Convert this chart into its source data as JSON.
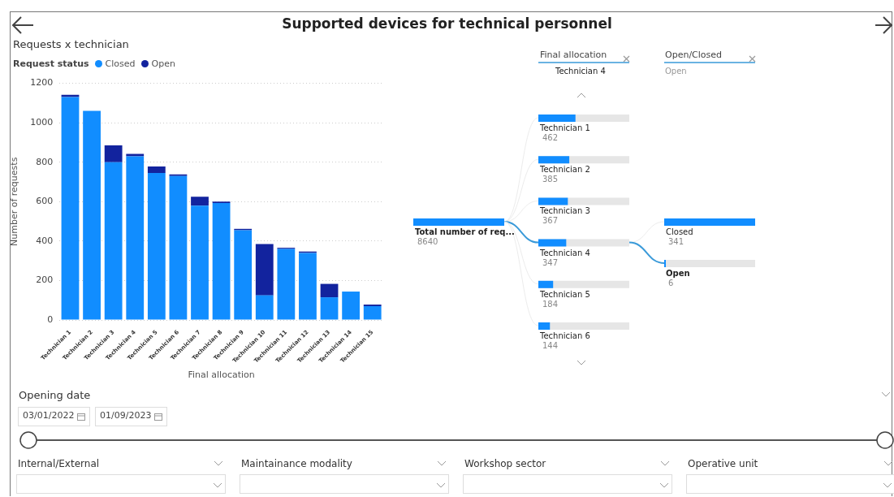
{
  "chart_data": [
    {
      "type": "bar",
      "title": "Supported devices for technical personnel",
      "subtitle": "Requests x technician",
      "legend_title": "Request status",
      "legend": "top left",
      "xlabel": "Final allocation",
      "ylabel": "Number of requests",
      "stacked": true,
      "grid": "y",
      "categories": [
        "Technician 1",
        "Technician 2",
        "Technician 3",
        "Technician 4",
        "Technician 5",
        "Technician 6",
        "Technician 7",
        "Technician 8",
        "Technician 9",
        "Technician 10",
        "Technician 11",
        "Technician 12",
        "Technician 13",
        "Technician 14",
        "Technician 15"
      ],
      "series": [
        {
          "name": "Closed",
          "color": "#118dff",
          "values": [
            1130,
            1060,
            800,
            830,
            745,
            730,
            580,
            593,
            455,
            125,
            360,
            340,
            115,
            144,
            70
          ]
        },
        {
          "name": "Open",
          "color": "#12239e",
          "values": [
            12,
            0,
            85,
            12,
            33,
            8,
            45,
            7,
            7,
            260,
            6,
            7,
            68,
            0,
            8
          ]
        }
      ],
      "ylim": [
        0,
        1200
      ],
      "yticks": [
        0,
        200,
        400,
        600,
        800,
        1000,
        1200
      ]
    },
    {
      "type": "other",
      "categories": [
        "Total number of req...",
        "Technician 1",
        "Technician 2",
        "Technician 3",
        "Technician 4",
        "Technician 5",
        "Technician 6",
        "Closed",
        "Open"
      ],
      "values": [
        8640,
        462,
        385,
        367,
        347,
        184,
        144,
        341,
        6
      ],
      "color": "#118dff",
      "data_labels": true,
      "annotations": [
        "Final allocation",
        "Technician 4",
        "Open/Closed",
        "Open"
      ]
    },
    {
      "type": "other",
      "annotations": [
        "Opening date",
        "03/01/2022",
        "01/09/2023",
        "Internal/External",
        "Maintainance modality",
        "Workshop sector",
        "Operative unit"
      ]
    }
  ]
}
